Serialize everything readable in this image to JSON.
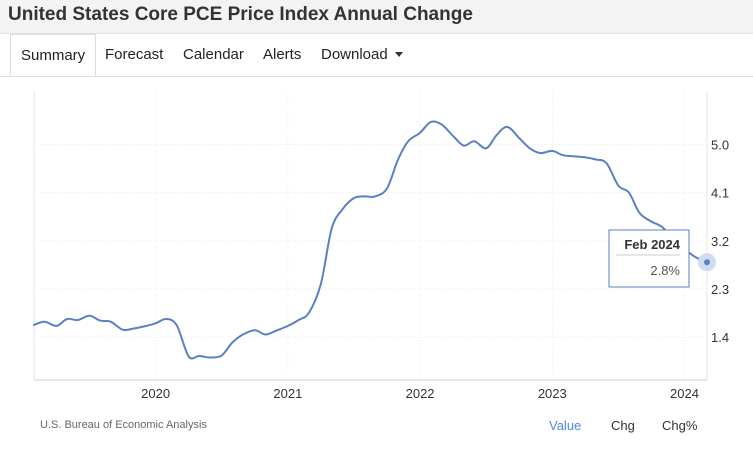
{
  "page_title": "United States Core PCE Price Index Annual Change",
  "tabs": [
    {
      "label": "Summary",
      "active": true
    },
    {
      "label": "Forecast"
    },
    {
      "label": "Calendar"
    },
    {
      "label": "Alerts"
    },
    {
      "label": "Download"
    }
  ],
  "footer": {
    "source": "U.S. Bureau of Economic Analysis",
    "value_label": "Value",
    "chg_label": "Chg",
    "chgpct_label": "Chg%"
  },
  "colors": {
    "line": "#5b80c2",
    "accent": "#4a8bd4"
  },
  "tooltip": {
    "date": "Feb 2024",
    "value": "2.8%"
  },
  "chart_data": {
    "type": "line",
    "title": "",
    "xlabel": "",
    "ylabel": "",
    "x_range": [
      2019.08,
      2024.17
    ],
    "ylim": [
      0.6,
      6.0
    ],
    "y_ticks": [
      1.4,
      2.3,
      3.2,
      4.1,
      5.0
    ],
    "y_tick_labels": [
      "1.4",
      "2.3",
      "3.2",
      "4.1",
      "5.0"
    ],
    "x_ticks": [
      2020,
      2021,
      2022,
      2023,
      2024
    ],
    "x_tick_labels": [
      "2020",
      "2021",
      "2022",
      "2023",
      "2024"
    ],
    "grid": true,
    "series": [
      {
        "values": [
          [
            2019.08,
            1.63
          ],
          [
            2019.16,
            1.69
          ],
          [
            2019.25,
            1.61
          ],
          [
            2019.33,
            1.74
          ],
          [
            2019.41,
            1.72
          ],
          [
            2019.5,
            1.8
          ],
          [
            2019.58,
            1.71
          ],
          [
            2019.66,
            1.69
          ],
          [
            2019.75,
            1.54
          ],
          [
            2019.83,
            1.56
          ],
          [
            2019.91,
            1.6
          ],
          [
            2020.0,
            1.66
          ],
          [
            2020.08,
            1.74
          ],
          [
            2020.16,
            1.62
          ],
          [
            2020.25,
            1.04
          ],
          [
            2020.33,
            1.05
          ],
          [
            2020.41,
            1.02
          ],
          [
            2020.5,
            1.06
          ],
          [
            2020.58,
            1.3
          ],
          [
            2020.66,
            1.45
          ],
          [
            2020.75,
            1.53
          ],
          [
            2020.83,
            1.45
          ],
          [
            2020.91,
            1.52
          ],
          [
            2021.0,
            1.61
          ],
          [
            2021.08,
            1.72
          ],
          [
            2021.16,
            1.86
          ],
          [
            2021.25,
            2.4
          ],
          [
            2021.33,
            3.42
          ],
          [
            2021.41,
            3.78
          ],
          [
            2021.5,
            4.0
          ],
          [
            2021.58,
            4.03
          ],
          [
            2021.66,
            4.03
          ],
          [
            2021.75,
            4.18
          ],
          [
            2021.83,
            4.7
          ],
          [
            2021.91,
            5.06
          ],
          [
            2022.0,
            5.22
          ],
          [
            2022.08,
            5.42
          ],
          [
            2022.16,
            5.38
          ],
          [
            2022.25,
            5.16
          ],
          [
            2022.33,
            4.98
          ],
          [
            2022.41,
            5.06
          ],
          [
            2022.5,
            4.93
          ],
          [
            2022.58,
            5.18
          ],
          [
            2022.66,
            5.33
          ],
          [
            2022.75,
            5.12
          ],
          [
            2022.83,
            4.93
          ],
          [
            2022.91,
            4.84
          ],
          [
            2023.0,
            4.88
          ],
          [
            2023.08,
            4.8
          ],
          [
            2023.16,
            4.78
          ],
          [
            2023.25,
            4.76
          ],
          [
            2023.33,
            4.72
          ],
          [
            2023.41,
            4.65
          ],
          [
            2023.5,
            4.23
          ],
          [
            2023.58,
            4.1
          ],
          [
            2023.66,
            3.72
          ],
          [
            2023.75,
            3.56
          ],
          [
            2023.83,
            3.46
          ],
          [
            2023.91,
            3.25
          ],
          [
            2024.0,
            3.05
          ],
          [
            2024.08,
            2.9
          ],
          [
            2024.17,
            2.8
          ]
        ]
      }
    ]
  }
}
